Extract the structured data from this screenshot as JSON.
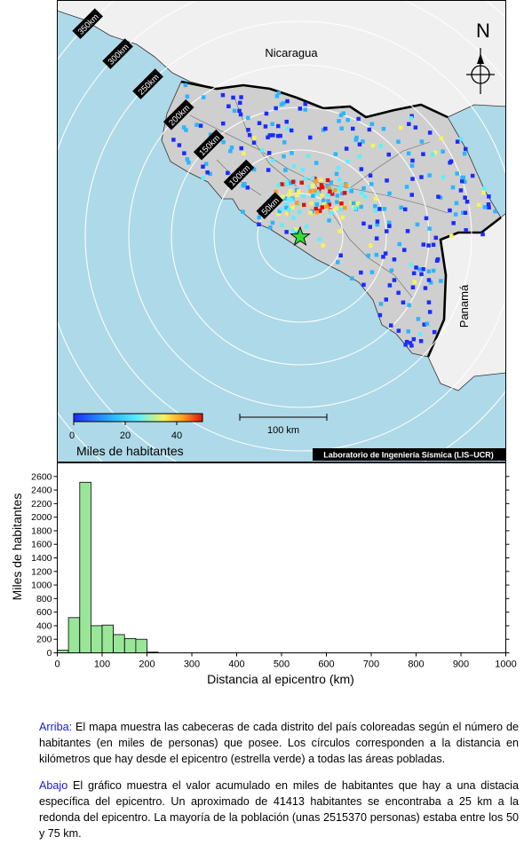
{
  "map": {
    "country_labels": [
      "Nicaragua",
      "Panamá"
    ],
    "north_label": "N",
    "ring_labels": [
      "50km",
      "100km",
      "150km",
      "200km",
      "250km",
      "300km",
      "350km"
    ],
    "scale_bar_label": "100 km",
    "colorbar": {
      "label": "Miles de habitantes",
      "ticks": [
        "0",
        "20",
        "40"
      ],
      "colors": [
        "#1a2cff",
        "#29b6ff",
        "#5af0ff",
        "#f7f25a",
        "#ff9b1a",
        "#e01010"
      ]
    },
    "credit": "Laboratorio de Ingeniería Sísmica (LIS–UCR)",
    "colors": {
      "sea": "#aed9e8",
      "land_cr": "#cfcfcf",
      "land_other": "#f0f0f0",
      "epicenter": "#33dd33"
    }
  },
  "chart_data": {
    "type": "bar",
    "xlabel": "Distancia al epicentro (km)",
    "ylabel": "Miles de habitantes",
    "xlim": [
      0,
      1000
    ],
    "ylim": [
      0,
      2800
    ],
    "xticks": [
      "0",
      "100",
      "200",
      "300",
      "400",
      "500",
      "600",
      "700",
      "800",
      "900",
      "1000"
    ],
    "yticks": [
      "0",
      "200",
      "400",
      "600",
      "800",
      "1000",
      "1200",
      "1400",
      "1600",
      "1800",
      "2000",
      "2200",
      "2400",
      "2600"
    ],
    "bin_width": 25,
    "bins_start": [
      0,
      25,
      50,
      75,
      100,
      125,
      150,
      175,
      200
    ],
    "values": [
      41,
      520,
      2515,
      400,
      410,
      270,
      210,
      200,
      10
    ],
    "bar_color": "#99e699"
  },
  "caption": {
    "p1_key": "Arriba:",
    "p1": " El mapa muestra las cabeceras de cada distrito del país coloreadas según el número de habitantes (en miles de personas) que posee. Los círculos corresponden a la distancia en kilómetros que hay desde el epicentro (estrella verde) a todas las áreas pobladas.",
    "p2_key": "Abajo",
    "p2": " El gráfico muestra el valor acumulado en miles de habitantes que hay a una distacia específica del epicentro. Un aproximado de 41413 habitantes se encontraba a 25 km a la redonda del epicentro. La mayoría de la población (unas 2515370 personas) estaba entre los 50 y 75 km."
  }
}
